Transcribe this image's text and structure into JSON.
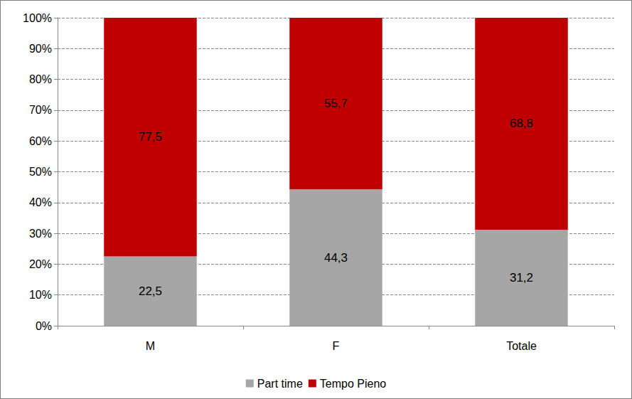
{
  "chart_data": {
    "type": "bar",
    "stacked": true,
    "data_labels": true,
    "grid": true,
    "legend": "bottom",
    "categories": [
      "M",
      "F",
      "Totale"
    ],
    "series": [
      {
        "name": "Part time",
        "color": "#a6a6a6",
        "values": [
          22.5,
          44.3,
          31.2
        ],
        "value_labels": [
          "22,5",
          "44,3",
          "31,2"
        ]
      },
      {
        "name": "Tempo Pieno",
        "color": "#c00000",
        "values": [
          77.5,
          55.7,
          68.8
        ],
        "value_labels": [
          "77,5",
          "55,7",
          "68,8"
        ]
      }
    ],
    "ylim": [
      0,
      100
    ],
    "yticks": [
      {
        "value": 0,
        "label": "0%"
      },
      {
        "value": 10,
        "label": "10%"
      },
      {
        "value": 20,
        "label": "20%"
      },
      {
        "value": 30,
        "label": "30%"
      },
      {
        "value": 40,
        "label": "40%"
      },
      {
        "value": 50,
        "label": "50%"
      },
      {
        "value": 60,
        "label": "60%"
      },
      {
        "value": 70,
        "label": "70%"
      },
      {
        "value": 80,
        "label": "80%"
      },
      {
        "value": 90,
        "label": "90%"
      },
      {
        "value": 100,
        "label": "100%"
      }
    ]
  }
}
